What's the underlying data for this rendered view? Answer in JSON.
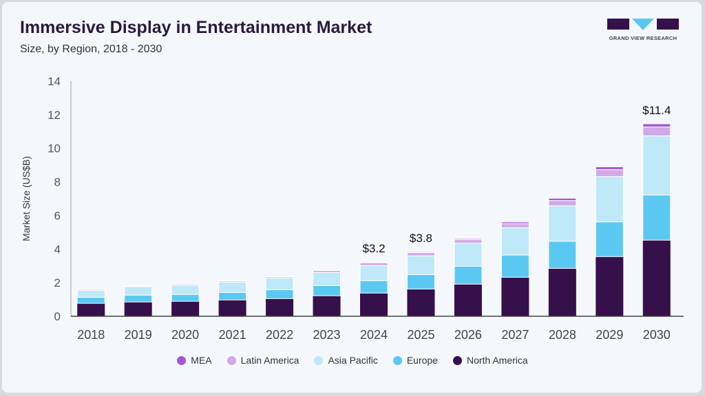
{
  "header": {
    "title": "Immersive Display in Entertainment Market",
    "subtitle": "Size, by Region, 2018 - 2030",
    "logo_text": "GRAND VIEW RESEARCH"
  },
  "chart_data": {
    "type": "bar",
    "stacked": true,
    "categories": [
      "2018",
      "2019",
      "2020",
      "2021",
      "2022",
      "2023",
      "2024",
      "2025",
      "2026",
      "2027",
      "2028",
      "2029",
      "2030"
    ],
    "ylabel": "Market Size (US$B)",
    "xlabel": "",
    "ylim": [
      0,
      14
    ],
    "yticks": [
      "0",
      "2",
      "4",
      "6",
      "8",
      "10",
      "12",
      "14"
    ],
    "grid": false,
    "legend_position": "bottom",
    "series": [
      {
        "name": "North America",
        "color": "#36104a",
        "values": [
          0.77,
          0.85,
          0.89,
          0.97,
          1.05,
          1.22,
          1.38,
          1.62,
          1.91,
          2.32,
          2.85,
          3.55,
          4.53
        ]
      },
      {
        "name": "Europe",
        "color": "#5bc8f2",
        "values": [
          0.36,
          0.41,
          0.41,
          0.45,
          0.53,
          0.61,
          0.74,
          0.86,
          1.07,
          1.32,
          1.62,
          2.07,
          2.69
        ]
      },
      {
        "name": "Asia Pacific",
        "color": "#bfe8f8",
        "values": [
          0.41,
          0.5,
          0.53,
          0.61,
          0.7,
          0.78,
          0.9,
          1.12,
          1.37,
          1.63,
          2.11,
          2.7,
          3.52
        ]
      },
      {
        "name": "Latin America",
        "color": "#d3a8e8",
        "values": [
          0.06,
          0.02,
          0.07,
          0.07,
          0.07,
          0.12,
          0.17,
          0.19,
          0.21,
          0.24,
          0.31,
          0.41,
          0.53
        ]
      },
      {
        "name": "MEA",
        "color": "#a258d4",
        "values": [
          0.02,
          0.02,
          0.02,
          0.03,
          0.03,
          0.03,
          0.04,
          0.05,
          0.06,
          0.1,
          0.14,
          0.17,
          0.19
        ]
      }
    ],
    "annotations": [
      {
        "category": "2024",
        "text": "$3.2"
      },
      {
        "category": "2025",
        "text": "$3.8"
      },
      {
        "category": "2030",
        "text": "$11.4"
      }
    ],
    "legend_order": [
      "MEA",
      "Latin America",
      "Asia Pacific",
      "Europe",
      "North America"
    ]
  }
}
